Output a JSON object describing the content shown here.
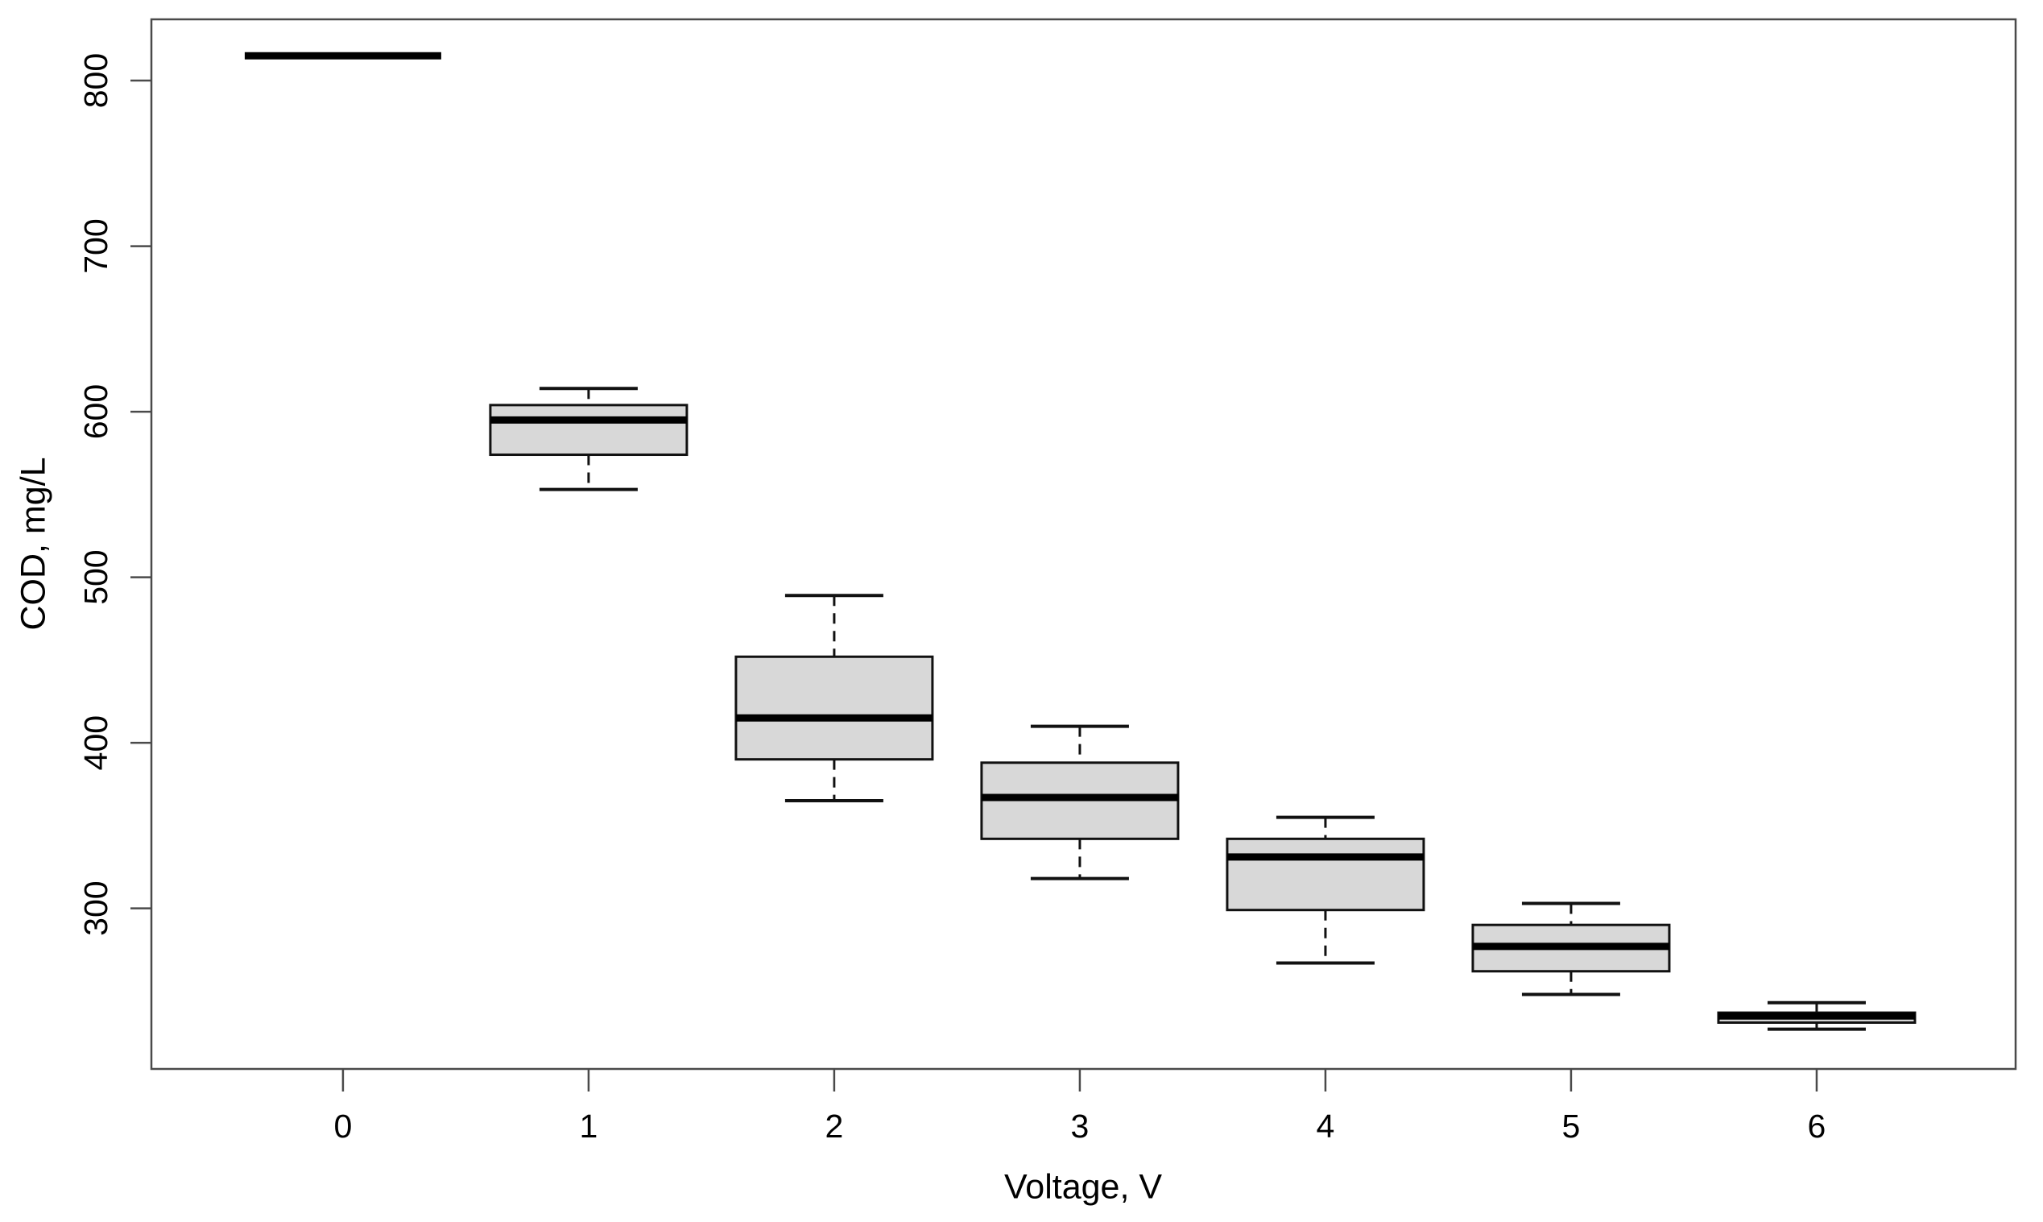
{
  "chart_data": {
    "type": "boxplot",
    "title": "",
    "xlabel": "Voltage, V",
    "ylabel": "COD, mg/L",
    "categories": [
      "0",
      "1",
      "2",
      "3",
      "4",
      "5",
      "6"
    ],
    "x_positions": [
      0,
      1,
      2,
      3,
      4,
      5,
      6
    ],
    "y_ticks": [
      300,
      400,
      500,
      600,
      700,
      800
    ],
    "ylim": [
      203,
      837
    ],
    "xlim": [
      -0.78,
      6.81
    ],
    "grid": false,
    "legend_position": "none",
    "box_width": 0.8,
    "staple_width": 0.4,
    "boxes": [
      {
        "category": "0",
        "whisker_low": 815,
        "q1": 815,
        "median": 815,
        "q3": 815,
        "whisker_high": 815
      },
      {
        "category": "1",
        "whisker_low": 553,
        "q1": 574,
        "median": 595,
        "q3": 604,
        "whisker_high": 614
      },
      {
        "category": "2",
        "whisker_low": 365,
        "q1": 390,
        "median": 415,
        "q3": 452,
        "whisker_high": 489
      },
      {
        "category": "3",
        "whisker_low": 318,
        "q1": 342,
        "median": 367,
        "q3": 388,
        "whisker_high": 410
      },
      {
        "category": "4",
        "whisker_low": 267,
        "q1": 299,
        "median": 331,
        "q3": 342,
        "whisker_high": 355
      },
      {
        "category": "5",
        "whisker_low": 248,
        "q1": 262,
        "median": 277,
        "q3": 290,
        "whisker_high": 303
      },
      {
        "category": "6",
        "whisker_low": 227,
        "q1": 231,
        "median": 235,
        "q3": 237,
        "whisker_high": 243
      }
    ],
    "colors": {
      "box_fill": "#d8d8d8",
      "box_border": "#111111",
      "median": "#000000",
      "whisker": "#111111",
      "axis": "#4a4a4a",
      "text": "#000000",
      "background": "#ffffff"
    }
  }
}
